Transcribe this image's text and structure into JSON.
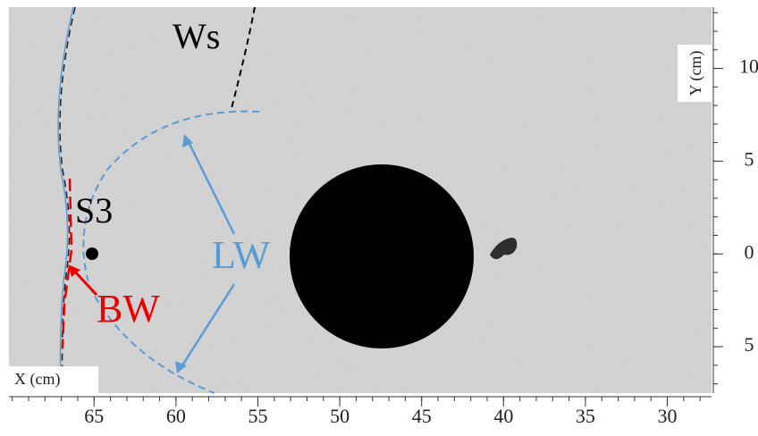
{
  "figure": {
    "annotations": {
      "ws": "Ws",
      "s3": "S3",
      "lw": "LW",
      "bw": "BW"
    },
    "x_axis": {
      "label": "X (cm)",
      "lim": [
        70.2,
        27.3
      ],
      "ticks": [
        65,
        60,
        55,
        50,
        45,
        40,
        35,
        30
      ]
    },
    "y_axis": {
      "label": "Y (cm)",
      "lim": [
        -7.5,
        13.3
      ],
      "ticks": [
        10,
        5,
        0,
        {
          "value": -5,
          "label": "5"
        }
      ]
    }
  }
}
